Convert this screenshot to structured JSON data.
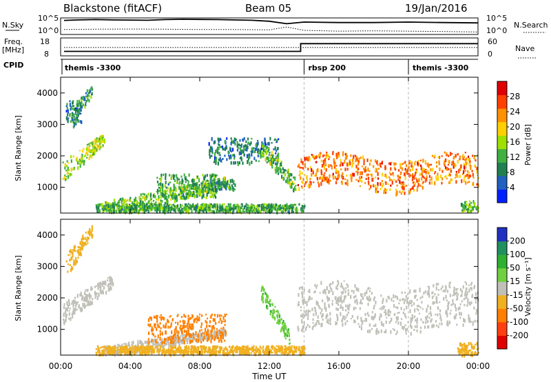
{
  "header": {
    "station": "Blackstone (fitACF)",
    "beam": "Beam 05",
    "date": "19/Jan/2016"
  },
  "summary_panels": {
    "nsky_label": "N.Sky",
    "nsearch_label": "N.Search",
    "nsky_ticks": [
      "10^5",
      "10^0"
    ],
    "freq_label_1": "Freq.",
    "freq_label_2": "[MHz]",
    "freq_ticks": [
      "18",
      "8"
    ],
    "nave_label": "Nave",
    "nave_ticks": [
      "60",
      "0"
    ],
    "cpid_label": "CPID"
  },
  "cpid_segments": [
    {
      "label": "themis -3300",
      "start_hour": 0
    },
    {
      "label": "rbsp 200",
      "start_hour": 14
    },
    {
      "label": "themis -3300",
      "start_hour": 20
    }
  ],
  "axes": {
    "xlabel": "Time UT",
    "x_ticks": [
      "00:00",
      "04:00",
      "08:00",
      "12:00",
      "16:00",
      "20:00",
      "00:00"
    ],
    "ylabel": "Slant Range [km]",
    "y_ticks": [
      "1000",
      "2000",
      "3000",
      "4000"
    ]
  },
  "power_colorbar": {
    "label": "Power [dB]",
    "ticks": [
      "4",
      "8",
      "12",
      "16",
      "20",
      "24",
      "28"
    ],
    "colors": [
      "#0020ff",
      "#2060c0",
      "#208050",
      "#40b040",
      "#a0e000",
      "#ffd000",
      "#ff9000",
      "#ff4000",
      "#e00000"
    ]
  },
  "velocity_colorbar": {
    "label": "Velocity [m s⁻¹]",
    "ticks": [
      "200",
      "100",
      "50",
      "15",
      "-15",
      "-50",
      "-100",
      "-200"
    ],
    "colors": [
      "#2030c0",
      "#209060",
      "#30b030",
      "#70d040",
      "#c0c0b8",
      "#f0b020",
      "#ff8000",
      "#ff4010",
      "#e00000"
    ]
  },
  "chart_data": [
    {
      "type": "line",
      "title": "N.Sky / N.Search",
      "x_range_hours": [
        0,
        24
      ],
      "series": [
        {
          "name": "N.Sky",
          "style": "solid",
          "x": [
            0.2,
            1,
            2,
            3,
            4,
            5,
            6,
            7,
            8,
            9,
            10,
            11,
            12,
            13,
            14,
            16,
            18,
            20,
            22,
            24
          ],
          "y_frac": [
            0.85,
            0.88,
            0.9,
            0.88,
            0.87,
            0.86,
            0.9,
            0.92,
            0.91,
            0.9,
            0.88,
            0.86,
            0.8,
            0.65,
            0.75,
            0.72,
            0.72,
            0.75,
            0.72,
            0.7
          ]
        },
        {
          "name": "N.Search",
          "style": "dotted",
          "x": [
            0.2,
            2,
            4,
            6,
            8,
            10,
            12,
            13,
            14,
            16,
            18,
            20,
            22,
            24
          ],
          "y_frac": [
            0.3,
            0.32,
            0.33,
            0.32,
            0.3,
            0.3,
            0.28,
            0.45,
            0.25,
            0.2,
            0.22,
            0.2,
            0.18,
            0.15
          ]
        }
      ]
    },
    {
      "type": "line",
      "title": "Freq. / Nave",
      "x_range_hours": [
        0,
        24
      ],
      "series": [
        {
          "name": "Freq.",
          "style": "solid",
          "x": [
            0.2,
            13.8,
            13.8,
            24
          ],
          "y": [
            10.5,
            10.5,
            14.8,
            14.8
          ],
          "ylim": [
            8,
            18
          ]
        },
        {
          "name": "Nave",
          "style": "dotted",
          "x": [
            0.2,
            24
          ],
          "y": [
            28,
            28
          ],
          "ylim": [
            0,
            60
          ]
        }
      ]
    },
    {
      "type": "heatmap",
      "title": "Power [dB]",
      "xlabel": "Time UT",
      "ylabel": "Slant Range [km]",
      "x_range_hours": [
        0,
        24
      ],
      "ylim_km": [
        180,
        4500
      ],
      "regions": [
        {
          "t0": 0.1,
          "t1": 2.5,
          "r0": 1500,
          "r1": 2700,
          "p": 16,
          "kind": "slant"
        },
        {
          "t0": 0.6,
          "t1": 1.8,
          "r0": 3100,
          "r1": 4300,
          "p": 10,
          "kind": "slant"
        },
        {
          "t0": 0.3,
          "t1": 1.2,
          "r0": 3100,
          "r1": 3800,
          "p": 8,
          "kind": "box"
        },
        {
          "t0": 2.5,
          "t1": 9.5,
          "r0": 250,
          "r1": 1300,
          "p": 14,
          "kind": "slant"
        },
        {
          "t0": 5.5,
          "t1": 9.0,
          "r0": 700,
          "r1": 1450,
          "p": 12,
          "kind": "box"
        },
        {
          "t0": 8.5,
          "t1": 10.0,
          "r0": 950,
          "r1": 1300,
          "p": 10,
          "kind": "box"
        },
        {
          "t0": 2.0,
          "t1": 14.0,
          "r0": 250,
          "r1": 500,
          "p": 12,
          "kind": "box"
        },
        {
          "t0": 8.5,
          "t1": 12.5,
          "r0": 1800,
          "r1": 2600,
          "p": 8,
          "kind": "box"
        },
        {
          "t0": 11.5,
          "t1": 13.5,
          "r0": 1100,
          "r1": 2300,
          "p": 14,
          "kind": "slant-down"
        },
        {
          "t0": 13.6,
          "t1": 24.0,
          "r0": 1000,
          "r1": 2000,
          "p": 24,
          "kind": "band"
        },
        {
          "t0": 23.0,
          "t1": 24.0,
          "r0": 200,
          "r1": 600,
          "p": 14,
          "kind": "box"
        }
      ]
    },
    {
      "type": "heatmap",
      "title": "Velocity [m s⁻¹]",
      "xlabel": "Time UT",
      "ylabel": "Slant Range [km]",
      "x_range_hours": [
        0,
        24
      ],
      "ylim_km": [
        180,
        4500
      ],
      "regions": [
        {
          "t0": 0.1,
          "t1": 3.0,
          "r0": 1500,
          "r1": 2700,
          "v": 0,
          "kind": "slant"
        },
        {
          "t0": 0.3,
          "t1": 1.8,
          "r0": 3000,
          "r1": 4300,
          "v": -30,
          "kind": "slant"
        },
        {
          "t0": 2.5,
          "t1": 9.5,
          "r0": 300,
          "r1": 1000,
          "v": 0,
          "kind": "slant"
        },
        {
          "t0": 5.0,
          "t1": 9.5,
          "r0": 600,
          "r1": 1500,
          "v": -70,
          "kind": "box"
        },
        {
          "t0": 2.0,
          "t1": 14.0,
          "r0": 250,
          "r1": 500,
          "v": -30,
          "kind": "box"
        },
        {
          "t0": 11.5,
          "t1": 13.2,
          "r0": 700,
          "r1": 2200,
          "v": 40,
          "kind": "slant-down"
        },
        {
          "t0": 13.6,
          "t1": 24.0,
          "r0": 1000,
          "r1": 2400,
          "v": 0,
          "kind": "band"
        },
        {
          "t0": 22.8,
          "t1": 24.0,
          "r0": 200,
          "r1": 600,
          "v": -30,
          "kind": "box"
        }
      ]
    }
  ]
}
